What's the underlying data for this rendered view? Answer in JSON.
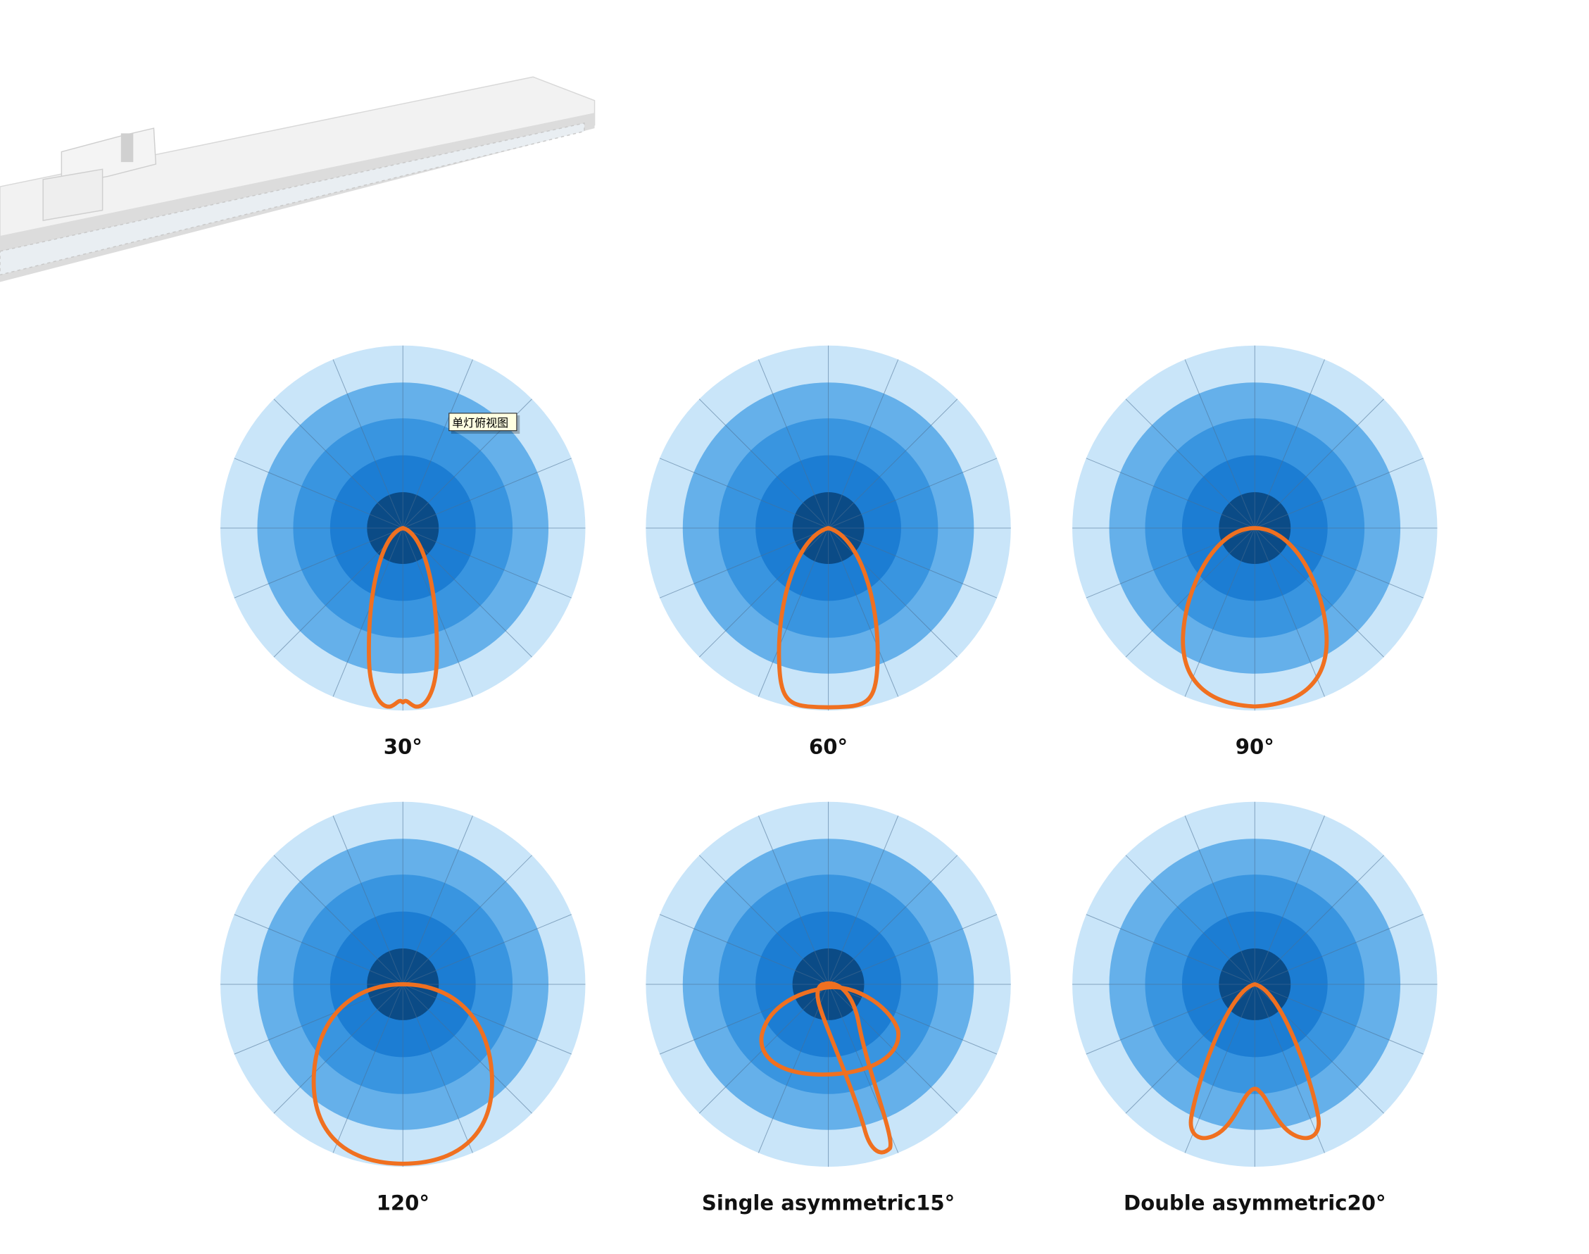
{
  "tooltip": "单灯俯视图",
  "diagrams": [
    {
      "label": "30°"
    },
    {
      "label": "60°"
    },
    {
      "label": "90°"
    },
    {
      "label": "120°"
    },
    {
      "label": "Single asymmetric15°"
    },
    {
      "label": "Double asymmetric20°"
    }
  ]
}
